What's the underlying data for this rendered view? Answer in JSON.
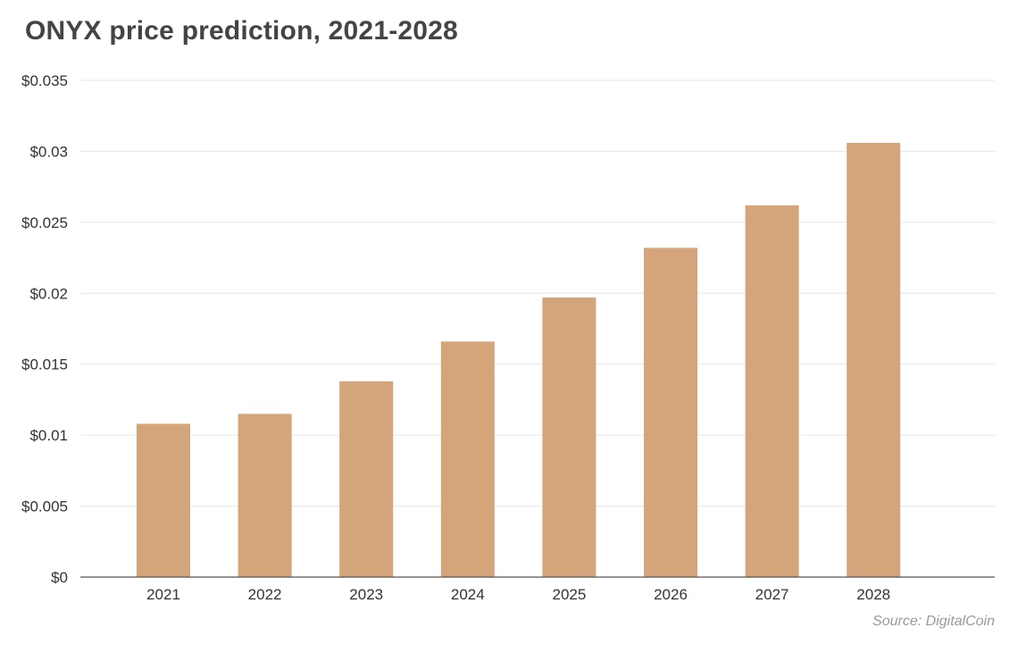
{
  "chart_data": {
    "type": "bar",
    "title": "ONYX price prediction, 2021-2028",
    "categories": [
      "2021",
      "2022",
      "2023",
      "2024",
      "2025",
      "2026",
      "2027",
      "2028"
    ],
    "values": [
      0.0108,
      0.0115,
      0.0138,
      0.0166,
      0.0197,
      0.0232,
      0.0262,
      0.0306
    ],
    "xlabel": "",
    "ylabel": "",
    "ylim": [
      0,
      0.035
    ],
    "yticks": [
      "$0",
      "$0.005",
      "$0.01",
      "$0.015",
      "$0.02",
      "$0.025",
      "$0.03",
      "$0.035"
    ],
    "ytick_values": [
      0,
      0.005,
      0.01,
      0.015,
      0.02,
      0.025,
      0.03,
      0.035
    ],
    "grid": true,
    "legend": "none",
    "bar_color": "#d4a47a",
    "source": "Source: DigitalCoin"
  }
}
